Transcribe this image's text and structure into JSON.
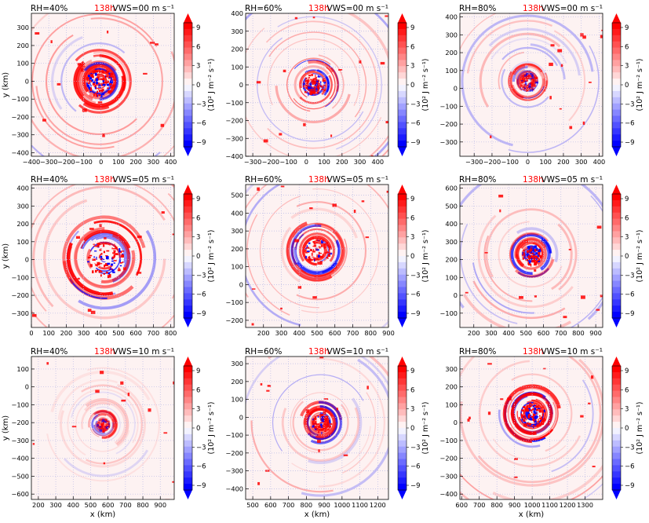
{
  "colors": {
    "positive": "#ff0000",
    "negative": "#0000ff",
    "zero": "#ffffff",
    "time_label": "#ff0000",
    "grid": "#b9b9e6"
  },
  "shared": {
    "time": "138h",
    "xlabel": "x (km)",
    "ylabel": "y (km)",
    "cbar_label": "(10² J m⁻² s⁻¹)",
    "cbar_ticks": [
      "9",
      "6",
      "3",
      "0",
      "−3",
      "−6",
      "−9"
    ]
  },
  "chart_data": [
    {
      "type": "heatmap",
      "rh": "RH=40%",
      "vws": "VWS=00 m s⁻¹",
      "xlim": [
        -400,
        420
      ],
      "ylim": [
        -420,
        380
      ],
      "xticks": [
        -400,
        -300,
        -200,
        -100,
        0,
        100,
        200,
        300,
        400
      ],
      "yticks": [
        -400,
        -300,
        -200,
        -100,
        0,
        100,
        200,
        300
      ],
      "center": [
        -10,
        0
      ],
      "radius": 200,
      "contrast": 1.0,
      "seed": 11
    },
    {
      "type": "heatmap",
      "rh": "RH=60%",
      "vws": "VWS=00 m s⁻¹",
      "xlim": [
        -340,
        460
      ],
      "ylim": [
        -400,
        400
      ],
      "xticks": [
        -300,
        -200,
        -100,
        0,
        100,
        200,
        300,
        400
      ],
      "yticks": [
        -400,
        -300,
        -200,
        -100,
        0,
        100,
        200,
        300,
        400
      ],
      "center": [
        40,
        0
      ],
      "radius": 160,
      "contrast": 0.85,
      "seed": 23
    },
    {
      "type": "heatmap",
      "rh": "RH=80%",
      "vws": "VWS=00 m s⁻¹",
      "xlim": [
        -380,
        420
      ],
      "ylim": [
        -380,
        420
      ],
      "xticks": [
        -300,
        -200,
        -100,
        0,
        100,
        200,
        300,
        400
      ],
      "yticks": [
        -300,
        -200,
        -100,
        0,
        100,
        200,
        300,
        400
      ],
      "center": [
        0,
        40
      ],
      "radius": 120,
      "contrast": 0.7,
      "seed": 37
    },
    {
      "type": "heatmap",
      "rh": "RH=40%",
      "vws": "VWS=05 m s⁻¹",
      "xlim": [
        0,
        820
      ],
      "ylim": [
        -380,
        420
      ],
      "xticks": [
        0,
        100,
        200,
        300,
        400,
        500,
        600,
        700,
        800
      ],
      "yticks": [
        -300,
        -200,
        -100,
        0,
        100,
        200,
        300,
        400
      ],
      "center": [
        420,
        10
      ],
      "radius": 260,
      "contrast": 1.0,
      "seed": 41
    },
    {
      "type": "heatmap",
      "rh": "RH=60%",
      "vws": "VWS=05 m s⁻¹",
      "xlim": [
        100,
        900
      ],
      "ylim": [
        -240,
        560
      ],
      "xticks": [
        200,
        300,
        400,
        500,
        600,
        700,
        800,
        900
      ],
      "yticks": [
        -200,
        -100,
        0,
        100,
        200,
        300,
        400,
        500
      ],
      "center": [
        500,
        190
      ],
      "radius": 180,
      "contrast": 0.85,
      "seed": 53
    },
    {
      "type": "heatmap",
      "rh": "RH=80%",
      "vws": "VWS=05 m s⁻¹",
      "xlim": [
        120,
        940
      ],
      "ylim": [
        -180,
        620
      ],
      "xticks": [
        200,
        300,
        400,
        500,
        600,
        700,
        800,
        900
      ],
      "yticks": [
        -100,
        0,
        100,
        200,
        300,
        400,
        500,
        600
      ],
      "center": [
        530,
        230
      ],
      "radius": 140,
      "contrast": 0.95,
      "seed": 67
    },
    {
      "type": "heatmap",
      "rh": "RH=40%",
      "vws": "VWS=10 m s⁻¹",
      "xlim": [
        160,
        980
      ],
      "ylim": [
        -630,
        170
      ],
      "xticks": [
        200,
        300,
        400,
        500,
        600,
        700,
        800,
        900
      ],
      "yticks": [
        -600,
        -500,
        -400,
        -300,
        -200,
        -100,
        0,
        100
      ],
      "center": [
        570,
        -210
      ],
      "radius": 90,
      "contrast": 0.5,
      "seed": 71
    },
    {
      "type": "heatmap",
      "rh": "RH=60%",
      "vws": "VWS=10 m s⁻¹",
      "xlim": [
        460,
        1260
      ],
      "ylim": [
        -460,
        340
      ],
      "xticks": [
        500,
        600,
        700,
        800,
        900,
        1000,
        1100,
        1200
      ],
      "yticks": [
        -400,
        -300,
        -200,
        -100,
        0,
        100,
        200,
        300
      ],
      "center": [
        880,
        -30
      ],
      "radius": 130,
      "contrast": 0.8,
      "seed": 83
    },
    {
      "type": "heatmap",
      "rh": "RH=80%",
      "vws": "VWS=10 m s⁻¹",
      "xlim": [
        590,
        1400
      ],
      "ylim": [
        -430,
        370
      ],
      "xticks": [
        600,
        700,
        800,
        900,
        1000,
        1100,
        1200,
        1300
      ],
      "yticks": [
        -400,
        -300,
        -200,
        -100,
        0,
        100,
        200,
        300
      ],
      "center": [
        1000,
        50
      ],
      "radius": 170,
      "contrast": 1.0,
      "seed": 97
    }
  ]
}
